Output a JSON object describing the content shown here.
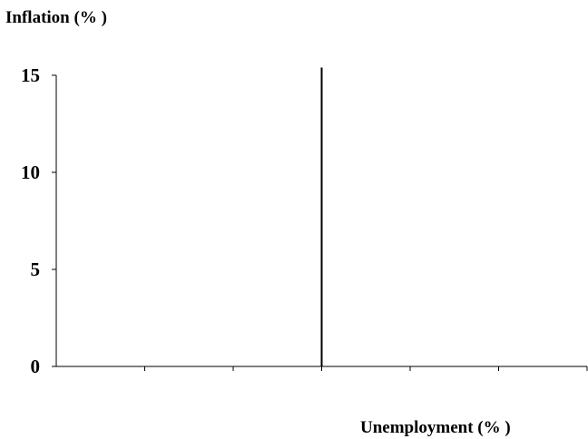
{
  "chart_data": {
    "type": "line",
    "ylabel": "Inflation (% )",
    "xlabel": "Unemployment (% )",
    "ylim": [
      0,
      15
    ],
    "yticks": [
      0,
      5,
      10,
      15
    ],
    "ytick_labels": [
      "0",
      "5",
      "10",
      "15"
    ],
    "xlim": [
      0,
      6
    ],
    "x_tick_count": 6,
    "x_tick_labels": [],
    "grid": false,
    "legend": "none",
    "series": [
      {
        "points": [
          {
            "x": 3,
            "y": 0
          },
          {
            "x": 3,
            "y": 15.4
          }
        ],
        "color": "#000000"
      }
    ]
  }
}
